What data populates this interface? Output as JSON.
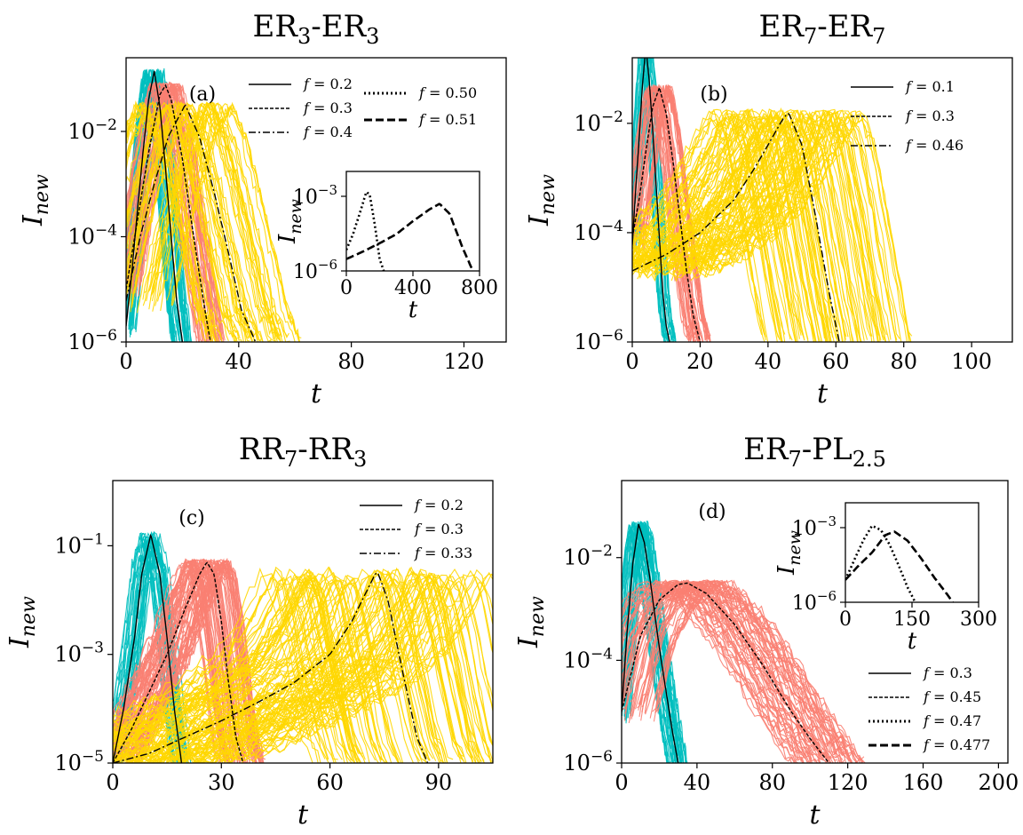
{
  "chart_data": [
    {
      "id": "a",
      "type": "line",
      "title": "ER3-ER3",
      "title_base": "ER",
      "title_sub": "3",
      "title_mid": "-ER",
      "title_sub2": "3",
      "panel_label": "(a)",
      "xlabel": "t",
      "ylabel_base": "I",
      "ylabel_sub": "new",
      "xlim": [
        0,
        135
      ],
      "xticks": [
        0,
        40,
        80,
        120
      ],
      "xtick_labels": [
        "0",
        "40",
        "80",
        "120"
      ],
      "yscale": "log",
      "ylog_range": [
        -6,
        -0.6
      ],
      "yticks_exp": [
        -6,
        -4,
        -2
      ],
      "ytick_base": "10",
      "ytick_exps": [
        "−6",
        "−4",
        "−2"
      ],
      "grid": false,
      "legend_placement": "top-right",
      "series": [
        {
          "name": "f = 0.2",
          "legend_f": "f",
          "legend_val": " = 0.2",
          "color": "#000000",
          "dash": "solid",
          "bundle_color": "#00bfbf",
          "bundle_count": 40,
          "peak": [
            10,
            0.14
          ],
          "x": [
            0,
            2,
            4,
            6,
            8,
            10,
            12,
            14,
            16,
            18,
            20
          ],
          "y": [
            2e-06,
            2e-05,
            0.0003,
            0.004,
            0.04,
            0.14,
            0.03,
            0.002,
            0.0001,
            6e-06,
            1e-06
          ]
        },
        {
          "name": "f = 0.3",
          "legend_f": "f",
          "legend_val": " = 0.3",
          "color": "#000000",
          "dash": "4,2",
          "bundle_color": "#fa8072",
          "bundle_count": 40,
          "peak": [
            14,
            0.075
          ],
          "x": [
            0,
            4,
            8,
            12,
            14,
            16,
            20,
            24,
            28,
            30
          ],
          "y": [
            1e-05,
            0.0002,
            0.004,
            0.05,
            0.075,
            0.04,
            0.003,
            0.0001,
            4e-06,
            1e-06
          ]
        },
        {
          "name": "f = 0.4",
          "legend_f": "f",
          "legend_val": " = 0.4",
          "color": "#000000",
          "dash": "8,3,2,3",
          "bundle_color": "#ffd700",
          "bundle_count": 60,
          "peak": [
            21,
            0.032
          ],
          "x": [
            0,
            5,
            10,
            15,
            21,
            26,
            31,
            36,
            41,
            46
          ],
          "y": [
            6e-06,
            0.0001,
            0.001,
            0.008,
            0.032,
            0.008,
            0.0008,
            6e-05,
            4e-06,
            1e-06
          ]
        }
      ],
      "legend_extra": [
        {
          "name": "f = 0.50",
          "legend_f": "f",
          "legend_val": " = 0.50",
          "dash": "2,3",
          "width": 3
        },
        {
          "name": "f = 0.51",
          "legend_f": "f",
          "legend_val": " = 0.51",
          "dash": "9,4",
          "width": 3
        }
      ],
      "inset": {
        "xlabel": "t",
        "ylabel_base": "I",
        "ylabel_sub": "new",
        "xlim": [
          0,
          800
        ],
        "xticks": [
          0,
          400,
          800
        ],
        "xtick_labels": [
          "0",
          "400",
          "800"
        ],
        "yscale": "log",
        "ylog_range": [
          -6,
          -2
        ],
        "yticks_exp": [
          -6,
          -3
        ],
        "ytick_exps": [
          "−6",
          "−3"
        ],
        "series": [
          {
            "name": "f = 0.50",
            "dash": "2,3",
            "x": [
              0,
              40,
              80,
              120,
              140,
              170,
              200,
              230
            ],
            "y": [
              7e-06,
              3e-05,
              0.0002,
              0.0015,
              0.0012,
              8e-05,
              3e-06,
              8e-07
            ]
          },
          {
            "name": "f = 0.51",
            "dash": "9,4",
            "x": [
              0,
              100,
              200,
              300,
              400,
              500,
              560,
              620,
              700,
              760
            ],
            "y": [
              3e-06,
              6e-06,
              1.3e-05,
              3e-05,
              0.0001,
              0.0003,
              0.0005,
              0.0002,
              8e-06,
              1e-06
            ]
          }
        ]
      }
    },
    {
      "id": "b",
      "type": "line",
      "title": "ER7-ER7",
      "title_base": "ER",
      "title_sub": "7",
      "title_mid": "-ER",
      "title_sub2": "7",
      "panel_label": "(b)",
      "xlabel": "t",
      "ylabel_base": "I",
      "ylabel_sub": "new",
      "xlim": [
        0,
        112
      ],
      "xticks": [
        0,
        20,
        40,
        60,
        80,
        100
      ],
      "xtick_labels": [
        "0",
        "20",
        "40",
        "60",
        "80",
        "100"
      ],
      "yscale": "log",
      "ylog_range": [
        -6,
        -0.8
      ],
      "yticks_exp": [
        -6,
        -4,
        -2
      ],
      "ytick_base": "10",
      "ytick_exps": [
        "−6",
        "−4",
        "−2"
      ],
      "grid": false,
      "legend_placement": "top-right",
      "series": [
        {
          "name": "f = 0.1",
          "legend_f": "f",
          "legend_val": " = 0.1",
          "color": "#000000",
          "dash": "solid",
          "bundle_color": "#00bfbf",
          "bundle_count": 20,
          "peak": [
            4,
            0.25
          ],
          "x": [
            0,
            1,
            2,
            3,
            4,
            5,
            6,
            7,
            8,
            9,
            10,
            11
          ],
          "y": [
            6e-05,
            0.0006,
            0.005,
            0.05,
            0.25,
            0.06,
            0.008,
            0.0008,
            8e-05,
            8e-06,
            2e-06,
            1e-06
          ]
        },
        {
          "name": "f = 0.3",
          "legend_f": "f",
          "legend_val": " = 0.3",
          "color": "#000000",
          "dash": "4,2",
          "bundle_color": "#fa8072",
          "bundle_count": 40,
          "peak": [
            8,
            0.045
          ],
          "x": [
            0,
            2,
            4,
            6,
            8,
            10,
            12,
            14,
            16,
            18,
            20
          ],
          "y": [
            8e-05,
            0.0004,
            0.003,
            0.02,
            0.045,
            0.015,
            0.002,
            0.0002,
            2e-05,
            3e-06,
            1e-06
          ]
        },
        {
          "name": "f = 0.46",
          "legend_f": "f",
          "legend_val": " = 0.46",
          "color": "#000000",
          "dash": "8,3,2,3",
          "bundle_color": "#ffd700",
          "bundle_count": 100,
          "peak": [
            46,
            0.016
          ],
          "x": [
            0,
            10,
            20,
            30,
            36,
            40,
            44,
            46,
            50,
            54,
            58,
            61
          ],
          "y": [
            2e-05,
            4e-05,
            0.0001,
            0.0004,
            0.0015,
            0.004,
            0.011,
            0.016,
            0.004,
            0.0002,
            8e-06,
            1e-06
          ]
        }
      ],
      "legend_extra": []
    },
    {
      "id": "c",
      "type": "line",
      "title": "RR7-RR3",
      "title_base": "RR",
      "title_sub": "7",
      "title_mid": "-RR",
      "title_sub2": "3",
      "panel_label": "(c)",
      "xlabel": "t",
      "ylabel_base": "I",
      "ylabel_sub": "new",
      "xlim": [
        0,
        105
      ],
      "xticks": [
        0,
        30,
        60,
        90
      ],
      "xtick_labels": [
        "0",
        "30",
        "60",
        "90"
      ],
      "yscale": "log",
      "ylog_range": [
        -5,
        0.2
      ],
      "yticks_exp": [
        -5,
        -3,
        -1
      ],
      "ytick_base": "10",
      "ytick_exps": [
        "−5",
        "−3",
        "−1"
      ],
      "grid": false,
      "legend_placement": "top-right",
      "series": [
        {
          "name": "f = 0.2",
          "legend_f": "f",
          "legend_val": " = 0.2",
          "color": "#000000",
          "dash": "solid",
          "bundle_color": "#00bfbf",
          "bundle_count": 30,
          "peak": [
            10.5,
            0.16
          ],
          "x": [
            0,
            3,
            6,
            8,
            10.5,
            13,
            15,
            17,
            19
          ],
          "y": [
            1e-05,
            0.0001,
            0.002,
            0.03,
            0.16,
            0.03,
            0.002,
            0.0001,
            1e-05
          ]
        },
        {
          "name": "f = 0.3",
          "legend_f": "f",
          "legend_val": " = 0.3",
          "color": "#000000",
          "dash": "4,2",
          "bundle_color": "#fa8072",
          "bundle_count": 70,
          "peak": [
            26,
            0.05
          ],
          "x": [
            0,
            5,
            10,
            15,
            20,
            24,
            26,
            28,
            30,
            32,
            34,
            36
          ],
          "y": [
            1e-05,
            4e-05,
            0.0002,
            0.001,
            0.007,
            0.03,
            0.05,
            0.03,
            0.004,
            0.0003,
            3e-05,
            1e-05
          ]
        },
        {
          "name": "f = 0.33",
          "legend_f": "f",
          "legend_val": " = 0.33",
          "color": "#000000",
          "dash": "8,3,2,3",
          "bundle_color": "#ffd700",
          "bundle_count": 110,
          "peak": [
            73,
            0.035
          ],
          "x": [
            0,
            10,
            20,
            30,
            40,
            50,
            60,
            66,
            70,
            73,
            76,
            80,
            84,
            87
          ],
          "y": [
            1e-05,
            1.5e-05,
            3e-05,
            6e-05,
            0.00013,
            0.0003,
            0.001,
            0.004,
            0.014,
            0.035,
            0.01,
            0.0005,
            3e-05,
            1e-05
          ]
        }
      ],
      "legend_extra": []
    },
    {
      "id": "d",
      "type": "line",
      "title": "ER7-PL2.5",
      "title_base": "ER",
      "title_sub": "7",
      "title_mid": "-PL",
      "title_sub2": "2.5",
      "panel_label": "(d)",
      "xlabel": "t",
      "ylabel_base": "I",
      "ylabel_sub": "new",
      "xlim": [
        0,
        205
      ],
      "xticks": [
        0,
        40,
        80,
        120,
        160,
        200
      ],
      "xtick_labels": [
        "0",
        "40",
        "80",
        "120",
        "160",
        "200"
      ],
      "yscale": "log",
      "ylog_range": [
        -6,
        -0.5
      ],
      "yticks_exp": [
        -6,
        -4,
        -2
      ],
      "ytick_base": "10",
      "ytick_exps": [
        "−6",
        "−4",
        "−2"
      ],
      "grid": false,
      "legend_placement": "bottom-right",
      "series": [
        {
          "name": "f = 0.3",
          "legend_f": "f",
          "legend_val": " = 0.3",
          "color": "#000000",
          "dash": "solid",
          "bundle_color": "#00bfbf",
          "bundle_count": 40,
          "peak": [
            9,
            0.045
          ],
          "x": [
            0,
            3,
            6,
            9,
            12,
            15,
            18,
            21,
            24,
            27,
            30
          ],
          "y": [
            1e-05,
            0.0004,
            0.008,
            0.045,
            0.02,
            0.004,
            0.0006,
            0.0001,
            2e-05,
            4e-06,
            1e-06
          ]
        },
        {
          "name": "f = 0.45",
          "legend_f": "f",
          "legend_val": " = 0.45",
          "color": "#000000",
          "dash": "4,2",
          "bundle_color": "#fa8072",
          "bundle_count": 60,
          "peak": [
            35,
            0.0032
          ],
          "x": [
            0,
            10,
            20,
            30,
            35,
            45,
            60,
            75,
            90,
            100,
            110
          ],
          "y": [
            1e-05,
            0.0003,
            0.0015,
            0.003,
            0.0032,
            0.002,
            0.0005,
            8e-05,
            1e-05,
            3e-06,
            1e-06
          ]
        }
      ],
      "legend_extra": [
        {
          "name": "f = 0.47",
          "legend_f": "f",
          "legend_val": " = 0.47",
          "dash": "2,3",
          "width": 3
        },
        {
          "name": "f = 0.477",
          "legend_f": "f",
          "legend_val": " = 0.477",
          "dash": "9,4",
          "width": 3
        }
      ],
      "inset": {
        "xlabel": "t",
        "ylabel_base": "I",
        "ylabel_sub": "new",
        "xlim": [
          0,
          300
        ],
        "xticks": [
          0,
          150,
          300
        ],
        "xtick_labels": [
          "0",
          "150",
          "300"
        ],
        "yscale": "log",
        "ylog_range": [
          -6,
          -2
        ],
        "yticks_exp": [
          -6,
          -3
        ],
        "ytick_exps": [
          "−6",
          "−3"
        ],
        "series": [
          {
            "name": "f = 0.47",
            "dash": "2,3",
            "x": [
              0,
              20,
              40,
              60,
              80,
              100,
              120,
              140,
              160,
              175
            ],
            "y": [
              8e-06,
              5e-05,
              0.0003,
              0.0012,
              0.0008,
              0.0002,
              3e-05,
              4e-06,
              8e-07,
              3e-07
            ]
          },
          {
            "name": "f = 0.477",
            "dash": "9,4",
            "x": [
              0,
              30,
              60,
              90,
              110,
              140,
              170,
              200,
              230,
              250
            ],
            "y": [
              8e-06,
              3e-05,
              0.0001,
              0.0005,
              0.0007,
              0.0003,
              6e-05,
              1e-05,
              2e-06,
              6e-07
            ]
          }
        ]
      }
    }
  ]
}
